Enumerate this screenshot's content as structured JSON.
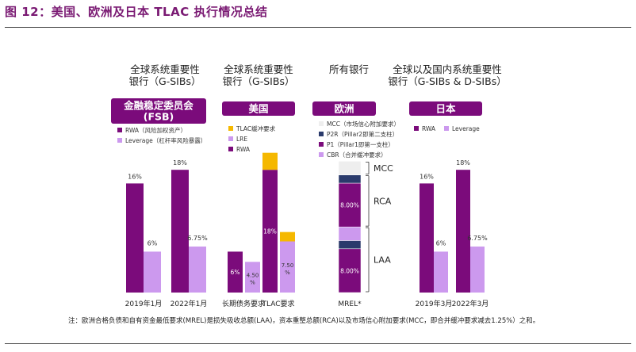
{
  "figure_title": "图 12：美国、欧洲及日本 TLAC 执行情况总结",
  "note": "注：欧洲合格负债和自有资金最低要求(MREL)是损失吸收总额(LAA)，资本重整总额(RCA)以及市场信心附加要求(MCC，即合并缓冲要求减去1.25%）之和。",
  "colors": {
    "rwa": "#7b0b7b",
    "lev": "#cc99ee",
    "buffer": "#f5b800",
    "navy": "#2a3a6b",
    "light": "#cfcfcf",
    "white_seg": "#eeeeee",
    "title": "#7a1a73"
  },
  "panels": [
    {
      "header": [
        "全球系统重要性",
        "银行（G-SIBs）"
      ],
      "badge": [
        "金融稳定委员会",
        "(FSB)"
      ],
      "legend": [
        {
          "label": "RWA（风险加权资产）",
          "color": "rwa"
        },
        {
          "label": "Leverage（杠杆率风险暴露）",
          "color": "lev"
        }
      ]
    },
    {
      "header": [
        "全球系统重要性",
        "银行（G-SIBs）"
      ],
      "badge": [
        "美国"
      ],
      "legend": [
        {
          "label": "TLAC缓冲要求",
          "color": "buffer"
        },
        {
          "label": "LRE",
          "color": "lev"
        },
        {
          "label": "RWA",
          "color": "rwa"
        }
      ]
    },
    {
      "header": [
        "所有银行"
      ],
      "badge": [
        "欧洲"
      ],
      "legend": [
        {
          "label": "MCC（市场信心附加要求）",
          "color": "white_seg"
        },
        {
          "label": "P2R（Pillar2即第二支柱）",
          "color": "navy"
        },
        {
          "label": "P1（Pillar1即第一支柱）",
          "color": "rwa"
        },
        {
          "label": "CBR（合并缓冲要求）",
          "color": "lev"
        }
      ],
      "brackets": [
        "MCC",
        "RCA",
        "LAA"
      ]
    },
    {
      "header": [
        "全球以及国内系统重要性",
        "银行（G-SIBs & D-SIBs）"
      ],
      "badge": [
        "日本"
      ],
      "legend": [
        {
          "label": "RWA",
          "color": "rwa"
        },
        {
          "label": "Leverage",
          "color": "lev"
        }
      ]
    }
  ],
  "chart_data": [
    {
      "type": "bar",
      "title": "金融稳定委员会(FSB)",
      "categories": [
        "2019年1月",
        "2022年1月"
      ],
      "series": [
        {
          "name": "RWA（风险加权资产）",
          "values": [
            16,
            18
          ],
          "labels": [
            "16%",
            "18%"
          ]
        },
        {
          "name": "Leverage（杠杆率风险暴露）",
          "values": [
            6,
            6.75
          ],
          "labels": [
            "6%",
            "6.75%"
          ]
        }
      ]
    },
    {
      "type": "bar",
      "title": "美国",
      "categories": [
        "长期债务要求",
        "TLAC要求"
      ],
      "series": [
        {
          "name": "RWA",
          "values": [
            6,
            18
          ],
          "labels": [
            "6%",
            "18%"
          ]
        },
        {
          "name": "LRE",
          "values": [
            4.5,
            7.5
          ],
          "labels": [
            "4.50%",
            "7.50%"
          ]
        },
        {
          "name": "TLAC缓冲要求",
          "values": [
            0,
            2.5
          ],
          "labels": [
            "",
            ""
          ]
        }
      ]
    },
    {
      "type": "bar",
      "title": "欧洲",
      "categories": [
        "MREL*"
      ],
      "segments": [
        {
          "name": "P1（Pillar1即第一支柱）",
          "value": 8,
          "label": "8.00%"
        },
        {
          "name": "P2R（Pillar2即第二支柱）",
          "value": 1.5,
          "label": ""
        },
        {
          "name": "CBR（合并缓冲要求）",
          "value": 2.5,
          "label": ""
        },
        {
          "name": "P1（Pillar1即第一支柱）",
          "value": 8,
          "label": "8.00%"
        },
        {
          "name": "P2R（Pillar2即第二支柱）",
          "value": 1.5,
          "label": ""
        },
        {
          "name": "MCC（市场信心附加要求）",
          "value": 2.5,
          "label": ""
        }
      ]
    },
    {
      "type": "bar",
      "title": "日本",
      "categories": [
        "2019年3月",
        "2022年3月"
      ],
      "series": [
        {
          "name": "RWA",
          "values": [
            16,
            18
          ],
          "labels": [
            "16%",
            "18%"
          ]
        },
        {
          "name": "Leverage",
          "values": [
            6,
            6.75
          ],
          "labels": [
            "6%",
            "6.75%"
          ]
        }
      ]
    }
  ]
}
